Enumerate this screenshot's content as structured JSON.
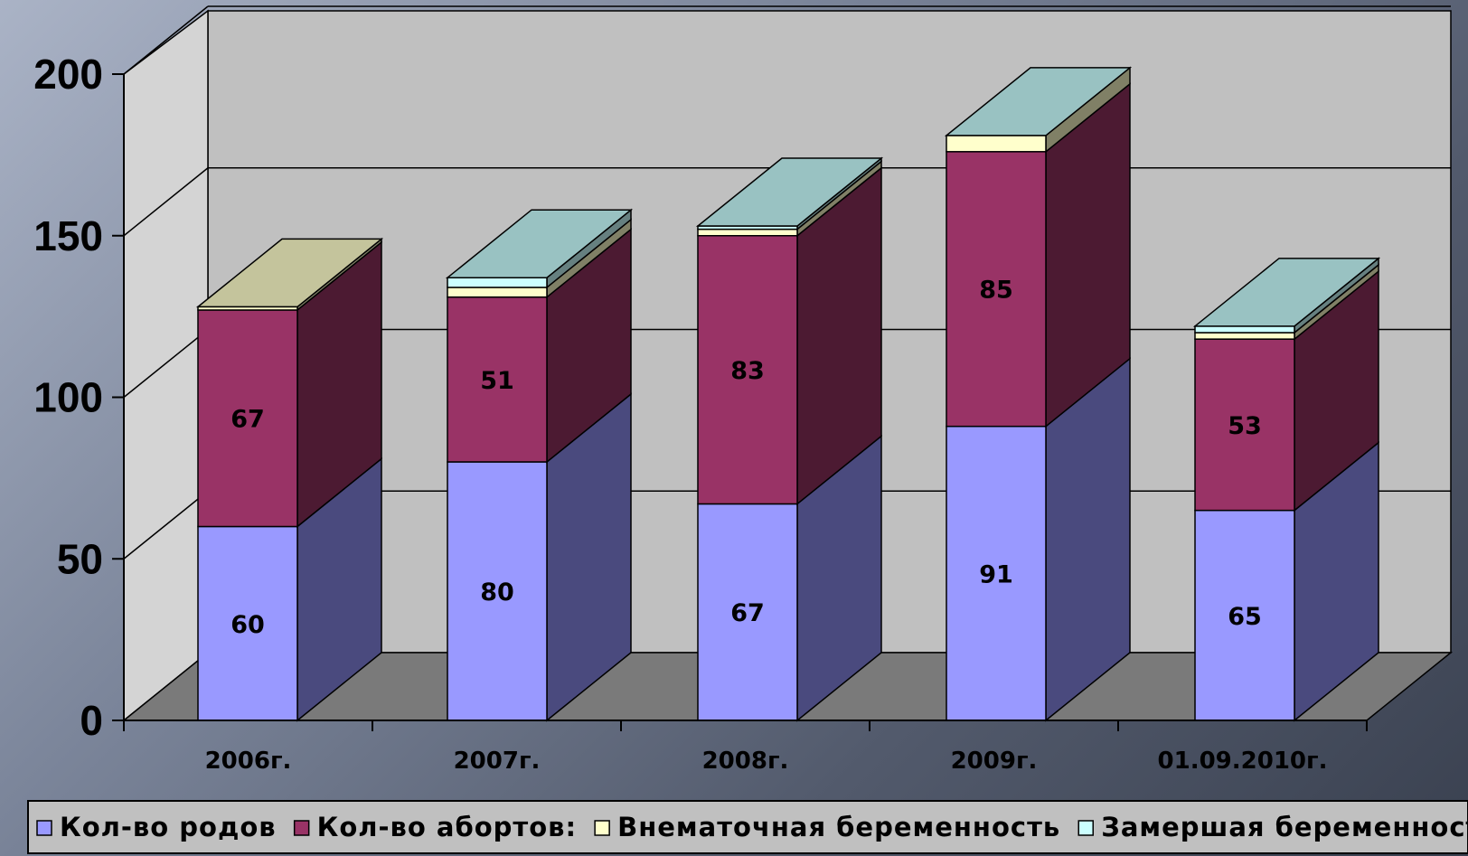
{
  "chart_data": {
    "type": "bar",
    "stacked": true,
    "three_d": true,
    "categories": [
      "2006г.",
      "2007г.",
      "2008г.",
      "2009г.",
      "01.09.2010г."
    ],
    "series": [
      {
        "name": "Кол-во родов",
        "values": [
          60,
          80,
          67,
          91,
          65
        ],
        "labels": [
          "60",
          "80",
          "67",
          "91",
          "65"
        ],
        "color": "#9999ff",
        "side": "#4a4a7e",
        "top": "#b8b8ff"
      },
      {
        "name": "Кол-во абортов:",
        "values": [
          67,
          51,
          83,
          85,
          53
        ],
        "labels": [
          "67",
          "51",
          "83",
          "85",
          "53"
        ],
        "color": "#993366",
        "side": "#4c1a32",
        "top": "#b35a86"
      },
      {
        "name": "Внематочная беременность",
        "values": [
          1,
          3,
          2,
          5,
          2
        ],
        "color": "#ffffcc",
        "side": "#808066",
        "top": "#ffffcc"
      },
      {
        "name": "Замершая беременность",
        "values": [
          0,
          3,
          1,
          0,
          2
        ],
        "color": "#ccffff",
        "side": "#668080",
        "top": "#ccffff"
      }
    ],
    "ylim": [
      0,
      200
    ],
    "yticks": [
      "0",
      "50",
      "100",
      "150",
      "200"
    ],
    "grid": true,
    "legend": "bottom"
  }
}
